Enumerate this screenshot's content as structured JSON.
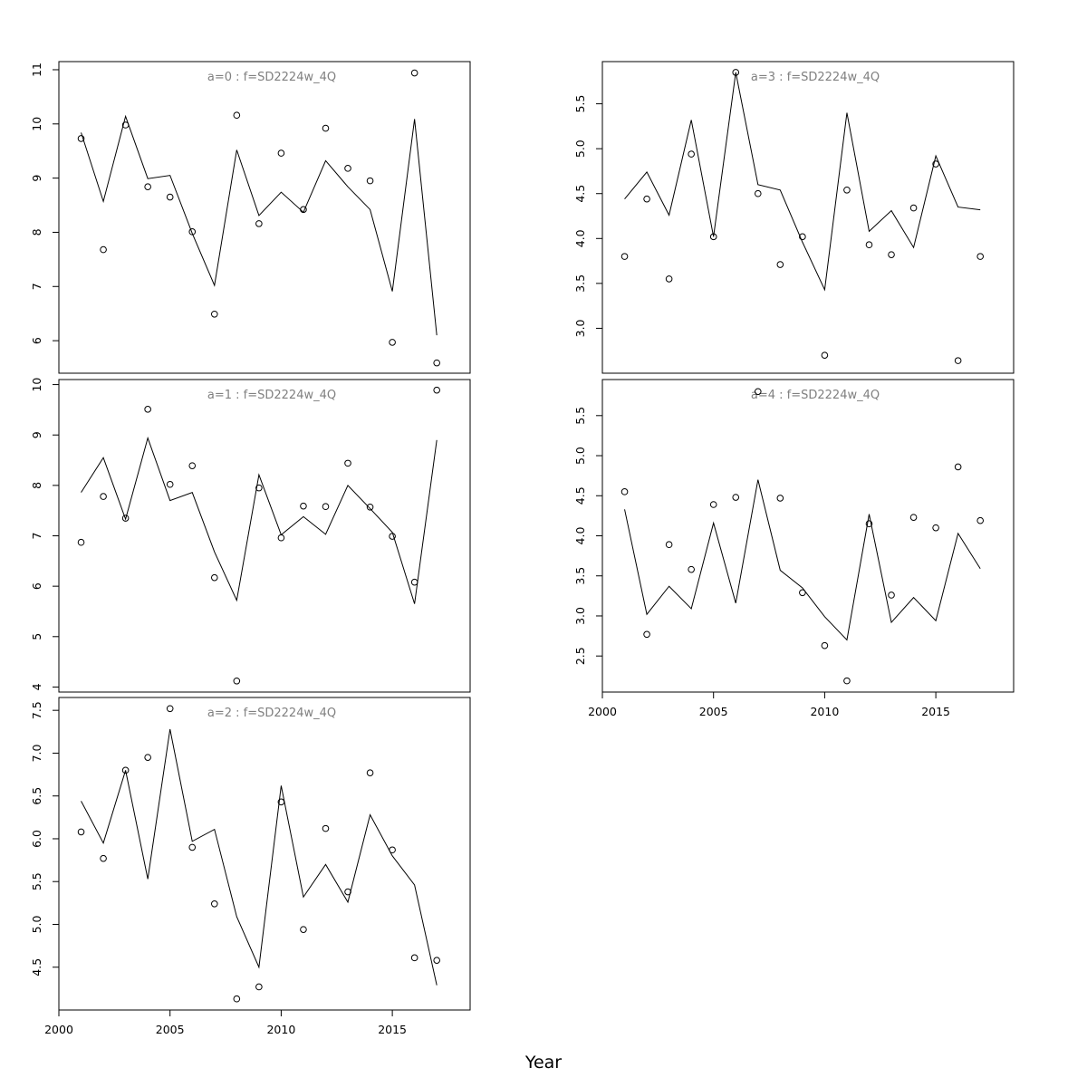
{
  "xlabel": "Year",
  "chart_data": [
    {
      "type": "line",
      "title": "a=0  :  f=SD2224w_4Q",
      "x": [
        2001,
        2002,
        2003,
        2004,
        2005,
        2006,
        2007,
        2008,
        2009,
        2010,
        2011,
        2012,
        2013,
        2014,
        2015,
        2016,
        2017
      ],
      "points": [
        9.73,
        7.68,
        9.98,
        8.84,
        8.65,
        8.01,
        6.49,
        10.16,
        8.16,
        9.46,
        8.42,
        9.92,
        9.18,
        8.95,
        5.97,
        10.94,
        5.59
      ],
      "line": [
        9.84,
        8.57,
        10.14,
        8.99,
        9.05,
        7.98,
        7.02,
        9.52,
        8.31,
        8.74,
        8.37,
        9.32,
        8.84,
        8.42,
        6.91,
        10.09,
        6.1
      ],
      "xlim": [
        2000,
        2018.5
      ],
      "ylim": [
        5.4,
        11.15
      ],
      "yticks": [
        6,
        7,
        8,
        9,
        10,
        11
      ],
      "xticks": [],
      "y_tick_labels": [
        "6",
        "7",
        "8",
        "9",
        "10",
        "11"
      ],
      "x_tick_labels": []
    },
    {
      "type": "line",
      "title": "a=1  :  f=SD2224w_4Q",
      "x": [
        2001,
        2002,
        2003,
        2004,
        2005,
        2006,
        2007,
        2008,
        2009,
        2010,
        2011,
        2012,
        2013,
        2014,
        2015,
        2016,
        2017
      ],
      "points": [
        6.87,
        7.78,
        7.35,
        9.51,
        8.02,
        8.39,
        6.17,
        4.12,
        7.95,
        6.96,
        7.59,
        7.58,
        8.44,
        7.57,
        6.99,
        6.08,
        9.89
      ],
      "line": [
        7.86,
        8.55,
        7.33,
        8.94,
        7.7,
        7.86,
        6.68,
        5.72,
        8.21,
        7.02,
        7.38,
        7.03,
        8.0,
        7.54,
        7.07,
        5.65,
        8.9
      ],
      "xlim": [
        2000,
        2018.5
      ],
      "ylim": [
        3.9,
        10.1
      ],
      "yticks": [
        4,
        5,
        6,
        7,
        8,
        9,
        10
      ],
      "xticks": [],
      "y_tick_labels": [
        "4",
        "5",
        "6",
        "7",
        "8",
        "9",
        "10"
      ],
      "x_tick_labels": []
    },
    {
      "type": "line",
      "title": "a=2  :  f=SD2224w_4Q",
      "x": [
        2001,
        2002,
        2003,
        2004,
        2005,
        2006,
        2007,
        2008,
        2009,
        2010,
        2011,
        2012,
        2013,
        2014,
        2015,
        2016,
        2017
      ],
      "points": [
        6.08,
        5.77,
        6.8,
        6.95,
        7.52,
        5.9,
        5.24,
        4.13,
        4.27,
        6.43,
        4.94,
        6.12,
        5.38,
        6.77,
        5.87,
        4.61,
        4.58
      ],
      "line": [
        6.44,
        5.95,
        6.8,
        5.53,
        7.28,
        5.97,
        6.11,
        5.09,
        4.5,
        6.62,
        5.32,
        5.7,
        5.26,
        6.28,
        5.8,
        5.46,
        4.29
      ],
      "xlim": [
        2000,
        2018.5
      ],
      "ylim": [
        4.0,
        7.65
      ],
      "yticks": [
        4.5,
        5.0,
        5.5,
        6.0,
        6.5,
        7.0,
        7.5
      ],
      "xticks": [
        2000,
        2005,
        2010,
        2015
      ],
      "y_tick_labels": [
        "4.5",
        "5.0",
        "5.5",
        "6.0",
        "6.5",
        "7.0",
        "7.5"
      ],
      "x_tick_labels": [
        "2000",
        "2005",
        "2010",
        "2015"
      ]
    },
    {
      "type": "line",
      "title": "a=3  :  f=SD2224w_4Q",
      "x": [
        2001,
        2002,
        2003,
        2004,
        2005,
        2006,
        2007,
        2008,
        2009,
        2010,
        2011,
        2012,
        2013,
        2014,
        2015,
        2016,
        2017
      ],
      "points": [
        3.8,
        4.44,
        3.55,
        4.94,
        4.02,
        5.85,
        4.5,
        3.71,
        4.02,
        2.7,
        4.54,
        3.93,
        3.82,
        4.34,
        4.83,
        2.64,
        3.8
      ],
      "line": [
        4.44,
        4.74,
        4.26,
        5.32,
        4.02,
        5.85,
        4.6,
        4.54,
        3.96,
        3.43,
        5.4,
        4.08,
        4.31,
        3.9,
        4.92,
        4.35,
        4.32
      ],
      "xlim": [
        2000,
        2018.5
      ],
      "ylim": [
        2.5,
        5.97
      ],
      "yticks": [
        3.0,
        3.5,
        4.0,
        4.5,
        5.0,
        5.5
      ],
      "xticks": [],
      "y_tick_labels": [
        "3.0",
        "3.5",
        "4.0",
        "4.5",
        "5.0",
        "5.5"
      ],
      "x_tick_labels": []
    },
    {
      "type": "line",
      "title": "a=4  :  f=SD2224w_4Q",
      "x": [
        2001,
        2002,
        2003,
        2004,
        2005,
        2006,
        2007,
        2008,
        2009,
        2010,
        2011,
        2012,
        2013,
        2014,
        2015,
        2016,
        2017
      ],
      "points": [
        4.55,
        2.77,
        3.89,
        3.58,
        4.39,
        4.48,
        5.8,
        4.47,
        3.29,
        2.63,
        2.19,
        4.15,
        3.26,
        4.23,
        4.1,
        4.86,
        4.19
      ],
      "line": [
        4.33,
        3.02,
        3.37,
        3.09,
        4.16,
        3.16,
        4.7,
        3.57,
        3.35,
        2.99,
        2.7,
        4.27,
        2.92,
        3.23,
        2.94,
        4.03,
        3.59
      ],
      "xlim": [
        2000,
        2018.5
      ],
      "ylim": [
        2.05,
        5.95
      ],
      "yticks": [
        2.5,
        3.0,
        3.5,
        4.0,
        4.5,
        5.0,
        5.5
      ],
      "xticks": [
        2000,
        2005,
        2010,
        2015
      ],
      "y_tick_labels": [
        "2.5",
        "3.0",
        "3.5",
        "4.0",
        "4.5",
        "5.0",
        "5.5"
      ],
      "x_tick_labels": [
        "2000",
        "2005",
        "2010",
        "2015"
      ]
    }
  ]
}
